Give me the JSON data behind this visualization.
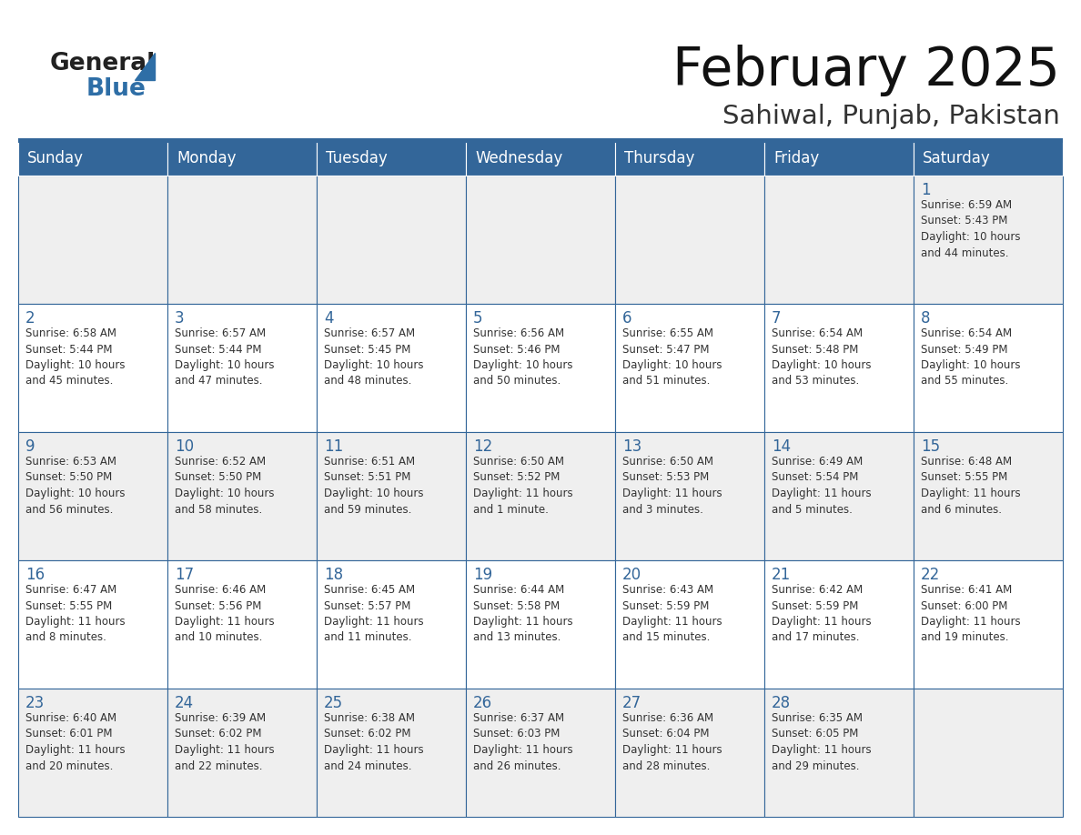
{
  "title": "February 2025",
  "subtitle": "Sahiwal, Punjab, Pakistan",
  "days_of_week": [
    "Sunday",
    "Monday",
    "Tuesday",
    "Wednesday",
    "Thursday",
    "Friday",
    "Saturday"
  ],
  "header_bg": "#336699",
  "header_text": "#FFFFFF",
  "cell_bg_light": "#EFEFEF",
  "cell_bg_white": "#FFFFFF",
  "border_color": "#336699",
  "text_color": "#333333",
  "day_num_color": "#336699",
  "title_color": "#111111",
  "subtitle_color": "#333333",
  "logo_general_color": "#222222",
  "logo_blue_color": "#2E6EA6",
  "logo_triangle_color": "#2E6EA6",
  "calendar_data": [
    [
      {
        "day": null,
        "info": ""
      },
      {
        "day": null,
        "info": ""
      },
      {
        "day": null,
        "info": ""
      },
      {
        "day": null,
        "info": ""
      },
      {
        "day": null,
        "info": ""
      },
      {
        "day": null,
        "info": ""
      },
      {
        "day": 1,
        "info": "Sunrise: 6:59 AM\nSunset: 5:43 PM\nDaylight: 10 hours\nand 44 minutes."
      }
    ],
    [
      {
        "day": 2,
        "info": "Sunrise: 6:58 AM\nSunset: 5:44 PM\nDaylight: 10 hours\nand 45 minutes."
      },
      {
        "day": 3,
        "info": "Sunrise: 6:57 AM\nSunset: 5:44 PM\nDaylight: 10 hours\nand 47 minutes."
      },
      {
        "day": 4,
        "info": "Sunrise: 6:57 AM\nSunset: 5:45 PM\nDaylight: 10 hours\nand 48 minutes."
      },
      {
        "day": 5,
        "info": "Sunrise: 6:56 AM\nSunset: 5:46 PM\nDaylight: 10 hours\nand 50 minutes."
      },
      {
        "day": 6,
        "info": "Sunrise: 6:55 AM\nSunset: 5:47 PM\nDaylight: 10 hours\nand 51 minutes."
      },
      {
        "day": 7,
        "info": "Sunrise: 6:54 AM\nSunset: 5:48 PM\nDaylight: 10 hours\nand 53 minutes."
      },
      {
        "day": 8,
        "info": "Sunrise: 6:54 AM\nSunset: 5:49 PM\nDaylight: 10 hours\nand 55 minutes."
      }
    ],
    [
      {
        "day": 9,
        "info": "Sunrise: 6:53 AM\nSunset: 5:50 PM\nDaylight: 10 hours\nand 56 minutes."
      },
      {
        "day": 10,
        "info": "Sunrise: 6:52 AM\nSunset: 5:50 PM\nDaylight: 10 hours\nand 58 minutes."
      },
      {
        "day": 11,
        "info": "Sunrise: 6:51 AM\nSunset: 5:51 PM\nDaylight: 10 hours\nand 59 minutes."
      },
      {
        "day": 12,
        "info": "Sunrise: 6:50 AM\nSunset: 5:52 PM\nDaylight: 11 hours\nand 1 minute."
      },
      {
        "day": 13,
        "info": "Sunrise: 6:50 AM\nSunset: 5:53 PM\nDaylight: 11 hours\nand 3 minutes."
      },
      {
        "day": 14,
        "info": "Sunrise: 6:49 AM\nSunset: 5:54 PM\nDaylight: 11 hours\nand 5 minutes."
      },
      {
        "day": 15,
        "info": "Sunrise: 6:48 AM\nSunset: 5:55 PM\nDaylight: 11 hours\nand 6 minutes."
      }
    ],
    [
      {
        "day": 16,
        "info": "Sunrise: 6:47 AM\nSunset: 5:55 PM\nDaylight: 11 hours\nand 8 minutes."
      },
      {
        "day": 17,
        "info": "Sunrise: 6:46 AM\nSunset: 5:56 PM\nDaylight: 11 hours\nand 10 minutes."
      },
      {
        "day": 18,
        "info": "Sunrise: 6:45 AM\nSunset: 5:57 PM\nDaylight: 11 hours\nand 11 minutes."
      },
      {
        "day": 19,
        "info": "Sunrise: 6:44 AM\nSunset: 5:58 PM\nDaylight: 11 hours\nand 13 minutes."
      },
      {
        "day": 20,
        "info": "Sunrise: 6:43 AM\nSunset: 5:59 PM\nDaylight: 11 hours\nand 15 minutes."
      },
      {
        "day": 21,
        "info": "Sunrise: 6:42 AM\nSunset: 5:59 PM\nDaylight: 11 hours\nand 17 minutes."
      },
      {
        "day": 22,
        "info": "Sunrise: 6:41 AM\nSunset: 6:00 PM\nDaylight: 11 hours\nand 19 minutes."
      }
    ],
    [
      {
        "day": 23,
        "info": "Sunrise: 6:40 AM\nSunset: 6:01 PM\nDaylight: 11 hours\nand 20 minutes."
      },
      {
        "day": 24,
        "info": "Sunrise: 6:39 AM\nSunset: 6:02 PM\nDaylight: 11 hours\nand 22 minutes."
      },
      {
        "day": 25,
        "info": "Sunrise: 6:38 AM\nSunset: 6:02 PM\nDaylight: 11 hours\nand 24 minutes."
      },
      {
        "day": 26,
        "info": "Sunrise: 6:37 AM\nSunset: 6:03 PM\nDaylight: 11 hours\nand 26 minutes."
      },
      {
        "day": 27,
        "info": "Sunrise: 6:36 AM\nSunset: 6:04 PM\nDaylight: 11 hours\nand 28 minutes."
      },
      {
        "day": 28,
        "info": "Sunrise: 6:35 AM\nSunset: 6:05 PM\nDaylight: 11 hours\nand 29 minutes."
      },
      {
        "day": null,
        "info": ""
      }
    ]
  ]
}
